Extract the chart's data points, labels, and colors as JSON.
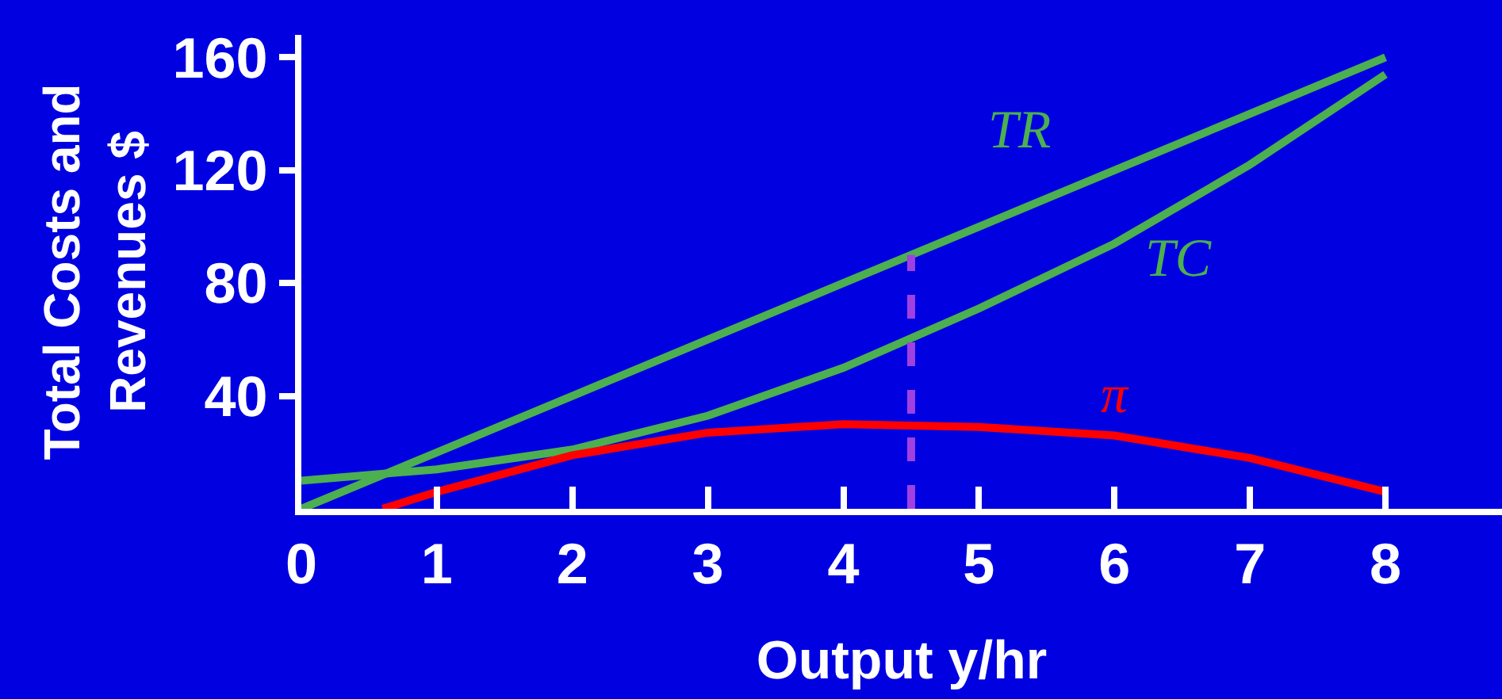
{
  "chart_data": {
    "type": "line",
    "xlabel": "Output y/hr",
    "ylabel": "Total Costs and Revenues $",
    "x": [
      0,
      1,
      2,
      3,
      4,
      5,
      6,
      7,
      8
    ],
    "series": [
      {
        "name": "TR",
        "color": "#4caf50",
        "values": [
          0,
          20,
          40,
          60,
          80,
          100,
          120,
          140,
          160
        ]
      },
      {
        "name": "TC",
        "color": "#4caf50",
        "values": [
          10,
          14,
          21,
          33,
          50,
          71,
          94,
          122,
          154
        ]
      },
      {
        "name": "π",
        "color": "#ff0000",
        "x": [
          0.6,
          1,
          2,
          3,
          4,
          5,
          6,
          7,
          8
        ],
        "values": [
          0,
          6,
          19,
          27,
          30,
          29,
          26,
          18,
          6
        ]
      },
      {
        "color": "#a040e0",
        "x": [
          4.5,
          4.5
        ],
        "values": [
          0,
          90
        ],
        "line_style": "dashed"
      }
    ],
    "xlim": [
      0,
      8.86
    ],
    "ylim": [
      0,
      168
    ],
    "xticks": [
      0,
      1,
      2,
      3,
      4,
      5,
      6,
      7,
      8
    ],
    "yticks": [
      40,
      80,
      120,
      160
    ],
    "grid": false,
    "marker": "none",
    "line_style": "solid"
  }
}
